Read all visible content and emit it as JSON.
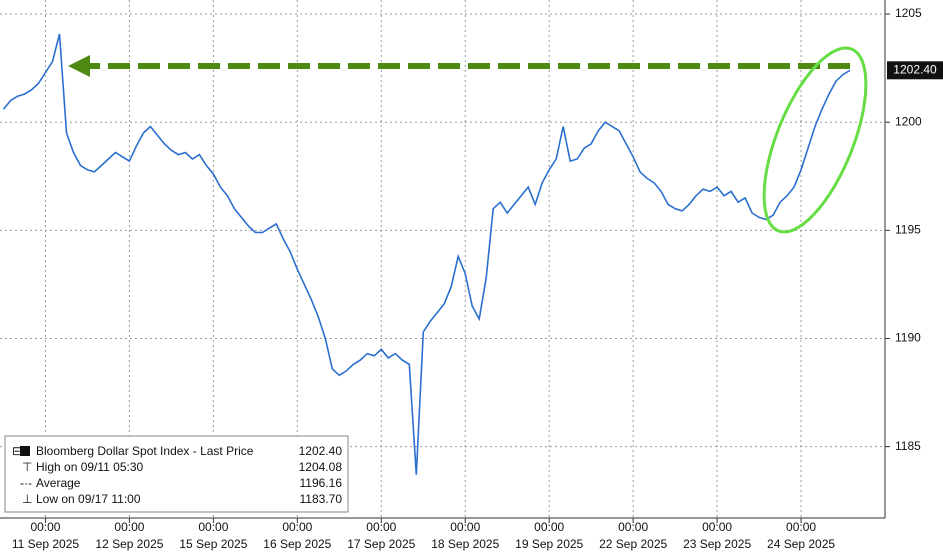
{
  "chart_data": {
    "type": "line",
    "series": [
      {
        "name": "Bloomberg Dollar Spot Index - Last Price",
        "color": "#2a6fcf",
        "values": [
          1200.6,
          1201.0,
          1201.2,
          1201.3,
          1201.5,
          1201.8,
          1202.3,
          1202.8,
          1204.08,
          1199.5,
          1198.6,
          1198.0,
          1197.8,
          1197.7,
          1198.0,
          1198.3,
          1198.6,
          1198.4,
          1198.2,
          1198.9,
          1199.5,
          1199.8,
          1199.4,
          1199.0,
          1198.7,
          1198.5,
          1198.6,
          1198.3,
          1198.5,
          1198.0,
          1197.6,
          1197.0,
          1196.6,
          1196.0,
          1195.6,
          1195.2,
          1194.9,
          1194.9,
          1195.1,
          1195.3,
          1194.6,
          1194.0,
          1193.2,
          1192.5,
          1191.8,
          1191.0,
          1190.0,
          1188.6,
          1188.3,
          1188.5,
          1188.8,
          1189.0,
          1189.3,
          1189.2,
          1189.5,
          1189.1,
          1189.3,
          1189.0,
          1188.8,
          1183.7,
          1190.3,
          1190.8,
          1191.2,
          1191.6,
          1192.4,
          1193.8,
          1193.0,
          1191.5,
          1190.9,
          1192.8,
          1196.0,
          1196.3,
          1195.8,
          1196.2,
          1196.6,
          1197.0,
          1196.2,
          1197.2,
          1197.8,
          1198.3,
          1199.8,
          1198.2,
          1198.3,
          1198.8,
          1199.0,
          1199.6,
          1200.0,
          1199.8,
          1199.6,
          1199.0,
          1198.4,
          1197.7,
          1197.4,
          1197.2,
          1196.8,
          1196.2,
          1196.0,
          1195.9,
          1196.2,
          1196.6,
          1196.9,
          1196.8,
          1197.0,
          1196.6,
          1196.8,
          1196.3,
          1196.5,
          1195.8,
          1195.6,
          1195.5,
          1195.7,
          1196.3,
          1196.6,
          1197.0,
          1197.8,
          1198.8,
          1199.8,
          1200.6,
          1201.3,
          1201.9,
          1202.2,
          1202.4
        ]
      }
    ],
    "xlim": [
      -0.5,
      126
    ],
    "xticks": [
      {
        "value": 6,
        "label": "00:00"
      },
      {
        "value": 18,
        "label": "00:00"
      },
      {
        "value": 30,
        "label": "00:00"
      },
      {
        "value": 42,
        "label": "00:00"
      },
      {
        "value": 54,
        "label": "00:00"
      },
      {
        "value": 66,
        "label": "00:00"
      },
      {
        "value": 78,
        "label": "00:00"
      },
      {
        "value": 90,
        "label": "00:00"
      },
      {
        "value": 102,
        "label": "00:00"
      },
      {
        "value": 114,
        "label": "00:00"
      }
    ],
    "xtick_dates": [
      "11 Sep 2025",
      "12 Sep 2025",
      "15 Sep 2025",
      "16 Sep 2025",
      "17 Sep 2025",
      "18 Sep 2025",
      "19 Sep 2025",
      "22 Sep 2025",
      "23 Sep 2025",
      "24 Sep 2025"
    ],
    "ylim": [
      1181.7,
      1205.65
    ],
    "yticks": [
      1185,
      1190,
      1195,
      1200,
      1205
    ],
    "grid": true,
    "last_price": 1202.4,
    "last_price_label": "1202.40",
    "legend": [
      {
        "label": "Bloomberg Dollar Spot Index - Last Price",
        "value": "1202.40"
      },
      {
        "label": "High on 09/11 05:30",
        "value": "1204.08"
      },
      {
        "label": "Average",
        "value": "1196.16"
      },
      {
        "label": "Low on 09/17 11:00",
        "value": "1183.70"
      }
    ]
  }
}
